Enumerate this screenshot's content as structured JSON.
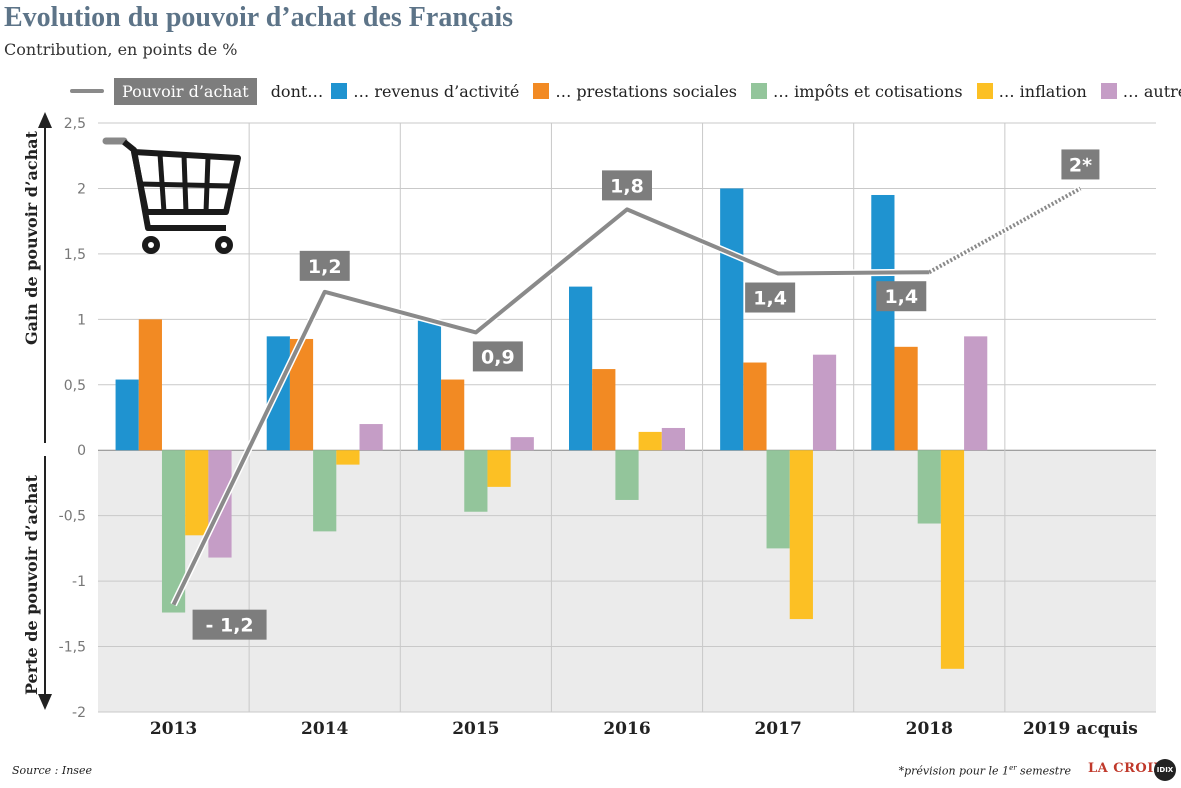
{
  "title": "Evolution du pouvoir d’achat des Français",
  "subtitle": "Contribution, en points de %",
  "legend": {
    "line_label": "Pouvoir d’achat",
    "dont": "dont…",
    "items": [
      {
        "label": "… revenus d’activité",
        "color": "#1f93d0"
      },
      {
        "label": "… prestations sociales",
        "color": "#f28a23"
      },
      {
        "label": "… impôts et cotisations",
        "color": "#93c59b"
      },
      {
        "label": "… inflation",
        "color": "#fcc024"
      },
      {
        "label": "… autres",
        "color": "#c59dc6"
      }
    ]
  },
  "footer": {
    "source": "Source : Insee",
    "note_prefix": "*prévision pour le 1",
    "note_sup": "er",
    "note_suffix": " semestre",
    "brand": "LA CROIX",
    "brand_badge": "IDIX"
  },
  "chart_data": {
    "type": "bar",
    "categories": [
      "2013",
      "2014",
      "2015",
      "2016",
      "2017",
      "2018",
      "2019 acquis"
    ],
    "ylim": [
      -2,
      2.5
    ],
    "yticks": [
      "2,5",
      "2",
      "1,5",
      "1",
      "0,5",
      "0",
      "-0,5",
      "-1",
      "-1,5",
      "-2"
    ],
    "ylabel_positive": "Gain de pouvoir d’achat",
    "ylabel_negative": "Perte de pouvoir d’achat",
    "series": [
      {
        "name": "… revenus d’activité",
        "color": "#1f93d0",
        "values": [
          0.54,
          0.87,
          0.99,
          1.25,
          2.0,
          1.95,
          null
        ]
      },
      {
        "name": "… prestations sociales",
        "color": "#f28a23",
        "values": [
          1.0,
          0.85,
          0.54,
          0.62,
          0.67,
          0.79,
          null
        ]
      },
      {
        "name": "… impôts et cotisations",
        "color": "#93c59b",
        "values": [
          -1.24,
          -0.62,
          -0.47,
          -0.38,
          -0.75,
          -0.56,
          null
        ]
      },
      {
        "name": "… inflation",
        "color": "#fcc024",
        "values": [
          -0.65,
          -0.11,
          -0.28,
          0.14,
          -1.29,
          -1.67,
          null
        ]
      },
      {
        "name": "… autres",
        "color": "#c59dc6",
        "values": [
          -0.82,
          0.2,
          0.1,
          0.17,
          0.73,
          0.87,
          null
        ]
      }
    ],
    "line": {
      "name": "Pouvoir d’achat",
      "color": "#8a8a8a",
      "values": [
        -1.18,
        1.21,
        0.9,
        1.84,
        1.35,
        1.36,
        2.0
      ],
      "labels": [
        "- 1,2",
        "1,2",
        "0,9",
        "1,8",
        "1,4",
        "1,4",
        "2*"
      ],
      "dotted_last_segment": true
    }
  }
}
